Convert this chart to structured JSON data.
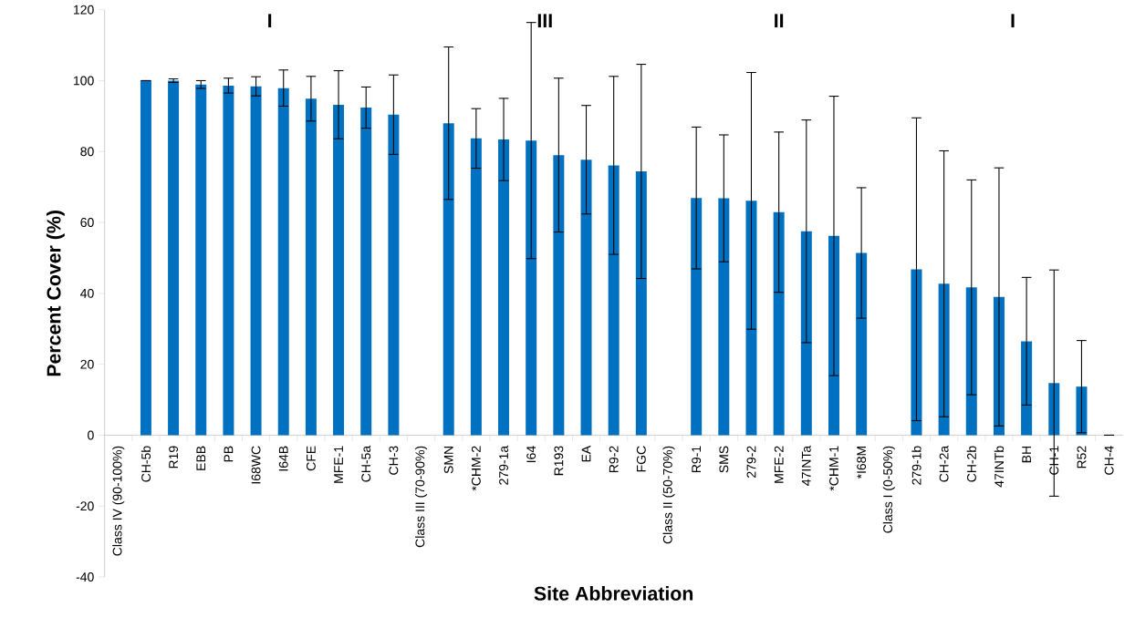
{
  "chart_data": {
    "type": "bar",
    "xlabel": "Site Abbreviation",
    "ylabel": "Percent Cover (%)",
    "categories": [
      "Class IV (90-100%)",
      "CH-5b",
      "R19",
      "EBB",
      "PB",
      "I68WC",
      "I64B",
      "CFE",
      "MFE-1",
      "CH-5a",
      "CH-3",
      "Class III (70-90%)",
      "SMN",
      "*CHM-2",
      "279-1a",
      "I64",
      "R193",
      "EA",
      "R9-2",
      "FGC",
      "Class II (50-70%)",
      "R9-1",
      "SMS",
      "279-2",
      "MFE-2",
      "47INTa",
      "*CHM-1",
      "*I68M",
      "Class I (0-50%)",
      "279-1b",
      "CH-2a",
      "CH-2b",
      "47INTb",
      "BH",
      "CH-1",
      "R52",
      "CH-4"
    ],
    "values": [
      null,
      100,
      100,
      98.9,
      98.6,
      98.4,
      97.9,
      94.9,
      93.2,
      92.4,
      90.4,
      null,
      88.0,
      83.7,
      83.4,
      83.1,
      79.0,
      77.7,
      76.1,
      74.4,
      null,
      66.9,
      66.8,
      66.1,
      62.9,
      57.5,
      56.2,
      51.4,
      null,
      46.8,
      42.7,
      41.7,
      39.0,
      26.5,
      14.7,
      13.7,
      0
    ],
    "errors": [
      null,
      0,
      0.5,
      1.1,
      2.1,
      2.7,
      5.1,
      6.3,
      9.6,
      5.8,
      11.2,
      null,
      21.5,
      8.4,
      11.6,
      33.3,
      21.7,
      15.3,
      25.1,
      30.2,
      null,
      20.0,
      17.9,
      36.2,
      22.6,
      31.4,
      39.4,
      18.4,
      null,
      42.7,
      37.5,
      30.3,
      36.4,
      18.0,
      31.9,
      13.0,
      null
    ],
    "color": "#0070c0",
    "ylim": [
      -40,
      120
    ],
    "yticks": [
      -40,
      -20,
      0,
      20,
      40,
      60,
      80,
      100,
      120
    ],
    "annotations": [
      "I",
      "III",
      "II",
      "I"
    ]
  }
}
